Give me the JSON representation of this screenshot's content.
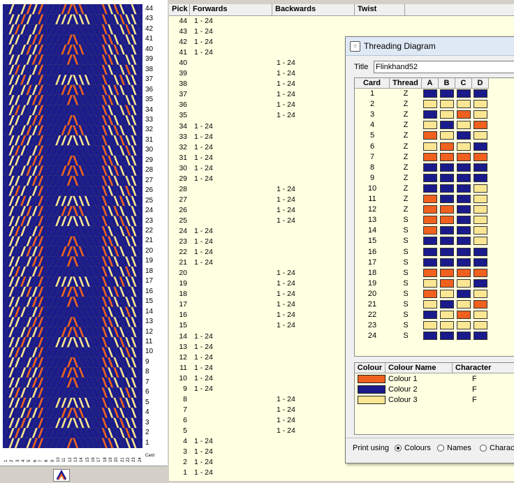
{
  "colors": {
    "c1": "#f0601e",
    "c2": "#1a1a8c",
    "c3": "#fbe693",
    "grid_bg": "#ffffe1"
  },
  "pattern": {
    "row_numbers": [
      "44",
      "43",
      "42",
      "41",
      "40",
      "39",
      "38",
      "37",
      "36",
      "35",
      "34",
      "33",
      "32",
      "31",
      "30",
      "29",
      "28",
      "27",
      "26",
      "25",
      "24",
      "23",
      "22",
      "21",
      "20",
      "19",
      "18",
      "17",
      "16",
      "15",
      "14",
      "13",
      "12",
      "11",
      "10",
      "9",
      "8",
      "7",
      "6",
      "5",
      "4",
      "3",
      "2",
      "1"
    ],
    "card_numbers": [
      "1",
      "2",
      "3",
      "4",
      "5",
      "6",
      "7",
      "8",
      "9",
      "10",
      "11",
      "12",
      "13",
      "14",
      "15",
      "16",
      "17",
      "18",
      "19",
      "20",
      "21",
      "22",
      "23",
      "24"
    ],
    "card_axis_label": "Card"
  },
  "pick_table": {
    "headers": {
      "pick": "Pick",
      "forwards": "Forwards",
      "backwards": "Backwards",
      "twist": "Twist"
    },
    "rows": [
      {
        "pick": "44",
        "fw": "1 - 24",
        "bw": ""
      },
      {
        "pick": "43",
        "fw": "1 - 24",
        "bw": ""
      },
      {
        "pick": "42",
        "fw": "1 - 24",
        "bw": ""
      },
      {
        "pick": "41",
        "fw": "1 - 24",
        "bw": ""
      },
      {
        "pick": "40",
        "fw": "",
        "bw": "1 - 24"
      },
      {
        "pick": "39",
        "fw": "",
        "bw": "1 - 24"
      },
      {
        "pick": "38",
        "fw": "",
        "bw": "1 - 24"
      },
      {
        "pick": "37",
        "fw": "",
        "bw": "1 - 24"
      },
      {
        "pick": "36",
        "fw": "",
        "bw": "1 - 24"
      },
      {
        "pick": "35",
        "fw": "",
        "bw": "1 - 24"
      },
      {
        "pick": "34",
        "fw": "1 - 24",
        "bw": ""
      },
      {
        "pick": "33",
        "fw": "1 - 24",
        "bw": ""
      },
      {
        "pick": "32",
        "fw": "1 - 24",
        "bw": ""
      },
      {
        "pick": "31",
        "fw": "1 - 24",
        "bw": ""
      },
      {
        "pick": "30",
        "fw": "1 - 24",
        "bw": ""
      },
      {
        "pick": "29",
        "fw": "1 - 24",
        "bw": ""
      },
      {
        "pick": "28",
        "fw": "",
        "bw": "1 - 24"
      },
      {
        "pick": "27",
        "fw": "",
        "bw": "1 - 24"
      },
      {
        "pick": "26",
        "fw": "",
        "bw": "1 - 24"
      },
      {
        "pick": "25",
        "fw": "",
        "bw": "1 - 24"
      },
      {
        "pick": "24",
        "fw": "1 - 24",
        "bw": ""
      },
      {
        "pick": "23",
        "fw": "1 - 24",
        "bw": ""
      },
      {
        "pick": "22",
        "fw": "1 - 24",
        "bw": ""
      },
      {
        "pick": "21",
        "fw": "1 - 24",
        "bw": ""
      },
      {
        "pick": "20",
        "fw": "",
        "bw": "1 - 24"
      },
      {
        "pick": "19",
        "fw": "",
        "bw": "1 - 24"
      },
      {
        "pick": "18",
        "fw": "",
        "bw": "1 - 24"
      },
      {
        "pick": "17",
        "fw": "",
        "bw": "1 - 24"
      },
      {
        "pick": "16",
        "fw": "",
        "bw": "1 - 24"
      },
      {
        "pick": "15",
        "fw": "",
        "bw": "1 - 24"
      },
      {
        "pick": "14",
        "fw": "1 - 24",
        "bw": ""
      },
      {
        "pick": "13",
        "fw": "1 - 24",
        "bw": ""
      },
      {
        "pick": "12",
        "fw": "1 - 24",
        "bw": ""
      },
      {
        "pick": "11",
        "fw": "1 - 24",
        "bw": ""
      },
      {
        "pick": "10",
        "fw": "1 - 24",
        "bw": ""
      },
      {
        "pick": "9",
        "fw": "1 - 24",
        "bw": ""
      },
      {
        "pick": "8",
        "fw": "",
        "bw": "1 - 24"
      },
      {
        "pick": "7",
        "fw": "",
        "bw": "1 - 24"
      },
      {
        "pick": "6",
        "fw": "",
        "bw": "1 - 24"
      },
      {
        "pick": "5",
        "fw": "",
        "bw": "1 - 24"
      },
      {
        "pick": "4",
        "fw": "1 - 24",
        "bw": ""
      },
      {
        "pick": "3",
        "fw": "1 - 24",
        "bw": ""
      },
      {
        "pick": "2",
        "fw": "1 - 24",
        "bw": ""
      },
      {
        "pick": "1",
        "fw": "1 - 24",
        "bw": ""
      }
    ]
  },
  "threading_window": {
    "title": "Threading Diagram",
    "title_label": "Title",
    "title_value": "Flinkhand52",
    "headers": {
      "card": "Card",
      "thread": "Thread",
      "a": "A",
      "b": "B",
      "c": "C",
      "d": "D"
    },
    "cards": [
      {
        "n": "1",
        "t": "Z",
        "holes": [
          2,
          2,
          2,
          2
        ]
      },
      {
        "n": "2",
        "t": "Z",
        "holes": [
          3,
          3,
          3,
          3
        ]
      },
      {
        "n": "3",
        "t": "Z",
        "holes": [
          2,
          3,
          1,
          3
        ]
      },
      {
        "n": "4",
        "t": "Z",
        "holes": [
          3,
          2,
          3,
          1
        ]
      },
      {
        "n": "5",
        "t": "Z",
        "holes": [
          1,
          3,
          2,
          3
        ]
      },
      {
        "n": "6",
        "t": "Z",
        "holes": [
          3,
          1,
          3,
          2
        ]
      },
      {
        "n": "7",
        "t": "Z",
        "holes": [
          1,
          1,
          1,
          1
        ]
      },
      {
        "n": "8",
        "t": "Z",
        "holes": [
          2,
          2,
          2,
          2
        ]
      },
      {
        "n": "9",
        "t": "Z",
        "holes": [
          2,
          2,
          2,
          2
        ]
      },
      {
        "n": "10",
        "t": "Z",
        "holes": [
          2,
          2,
          2,
          3
        ]
      },
      {
        "n": "11",
        "t": "Z",
        "holes": [
          1,
          2,
          2,
          3
        ]
      },
      {
        "n": "12",
        "t": "Z",
        "holes": [
          1,
          1,
          2,
          3
        ]
      },
      {
        "n": "13",
        "t": "S",
        "holes": [
          1,
          1,
          2,
          3
        ]
      },
      {
        "n": "14",
        "t": "S",
        "holes": [
          1,
          2,
          2,
          3
        ]
      },
      {
        "n": "15",
        "t": "S",
        "holes": [
          2,
          2,
          2,
          3
        ]
      },
      {
        "n": "16",
        "t": "S",
        "holes": [
          2,
          2,
          2,
          2
        ]
      },
      {
        "n": "17",
        "t": "S",
        "holes": [
          2,
          2,
          2,
          2
        ]
      },
      {
        "n": "18",
        "t": "S",
        "holes": [
          1,
          1,
          1,
          1
        ]
      },
      {
        "n": "19",
        "t": "S",
        "holes": [
          3,
          1,
          3,
          2
        ]
      },
      {
        "n": "20",
        "t": "S",
        "holes": [
          1,
          3,
          2,
          3
        ]
      },
      {
        "n": "21",
        "t": "S",
        "holes": [
          3,
          2,
          3,
          1
        ]
      },
      {
        "n": "22",
        "t": "S",
        "holes": [
          2,
          3,
          1,
          3
        ]
      },
      {
        "n": "23",
        "t": "S",
        "holes": [
          3,
          3,
          3,
          3
        ]
      },
      {
        "n": "24",
        "t": "S",
        "holes": [
          2,
          2,
          2,
          2
        ]
      }
    ],
    "colour_headers": {
      "colour": "Colour",
      "name": "Colour Name",
      "character": "Character"
    },
    "colours": [
      {
        "name": "Colour 1",
        "char": "F",
        "hex": "#f0601e"
      },
      {
        "name": "Colour 2",
        "char": "F",
        "hex": "#1a1a8c"
      },
      {
        "name": "Colour 3",
        "char": "F",
        "hex": "#fbe693"
      }
    ],
    "print_label": "Print using",
    "print_options": [
      "Colours",
      "Names",
      "Charact"
    ],
    "print_selected": "Colours"
  }
}
